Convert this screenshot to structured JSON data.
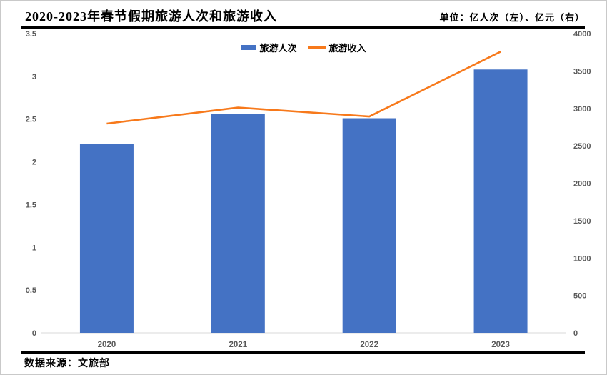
{
  "header": {
    "title": "2020-2023年春节假期旅游人次和旅游收入",
    "unit_note": "单位：亿人次（左）、亿元（右）"
  },
  "legend": {
    "items": [
      {
        "label": "旅游人次"
      },
      {
        "label": "旅游收入"
      }
    ]
  },
  "footer": {
    "source": "数据来源：文旅部"
  },
  "colors": {
    "bar": "#4472C4",
    "line": "#F7791B",
    "tick_text": "#595959",
    "axis_line": "#D9D9D9",
    "rule": "#000000"
  },
  "chart_data": {
    "type": "bar",
    "title": "2020-2023年春节假期旅游人次和旅游收入",
    "categories": [
      "2020",
      "2021",
      "2022",
      "2023"
    ],
    "series": [
      {
        "name": "旅游人次",
        "chart_type": "bar",
        "axis": "left",
        "unit": "亿人次",
        "values": [
          2.21,
          2.56,
          2.51,
          3.08
        ]
      },
      {
        "name": "旅游收入",
        "chart_type": "line",
        "axis": "right",
        "unit": "亿元",
        "values": [
          2797,
          3011,
          2892,
          3758
        ]
      }
    ],
    "left_axis": {
      "min": 0,
      "max": 3.5,
      "step": 0.5
    },
    "right_axis": {
      "min": 0,
      "max": 4000,
      "step": 500
    },
    "grid": false,
    "legend_position": "top"
  }
}
